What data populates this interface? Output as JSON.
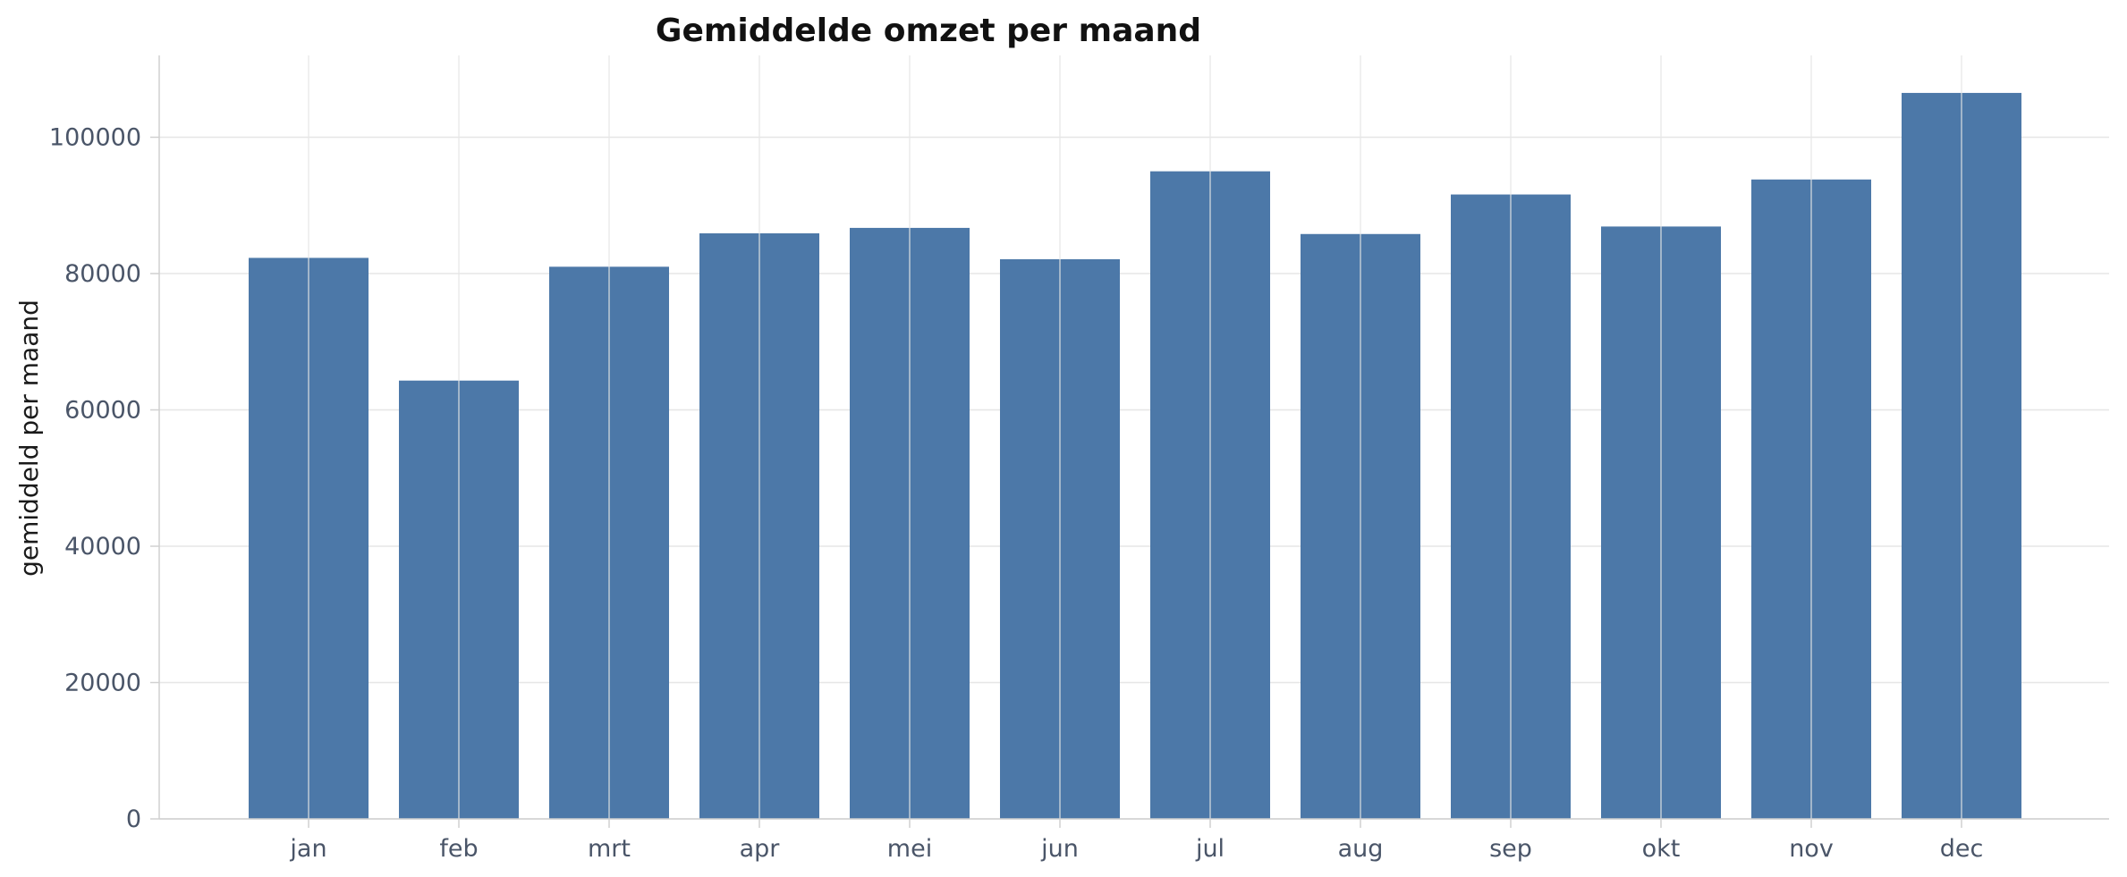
{
  "chart_data": {
    "type": "bar",
    "title": "Gemiddelde omzet per maand",
    "xlabel": "",
    "ylabel": "gemiddeld per maand",
    "categories": [
      "jan",
      "feb",
      "mrt",
      "apr",
      "mei",
      "jun",
      "jul",
      "aug",
      "sep",
      "okt",
      "nov",
      "dec"
    ],
    "values": [
      82300,
      64300,
      81000,
      85900,
      86700,
      82100,
      95000,
      85800,
      91600,
      86900,
      93800,
      106500
    ],
    "ylim": [
      0,
      112000
    ],
    "yticks": [
      0,
      20000,
      40000,
      60000,
      80000,
      100000
    ],
    "ytick_labels": [
      "0",
      "20000",
      "40000",
      "60000",
      "80000",
      "100000"
    ],
    "grid": true,
    "bar_color": "#4c78a8"
  }
}
